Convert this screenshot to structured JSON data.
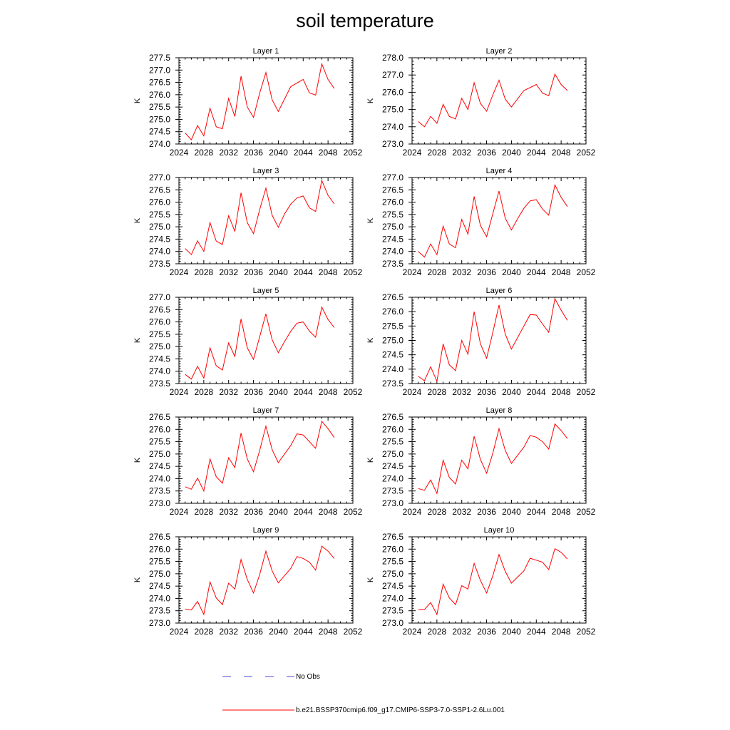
{
  "title": "soil temperature",
  "legend": {
    "entries": [
      {
        "label": "No Obs",
        "color": "#4a4ad0",
        "dash": "dashed"
      },
      {
        "label": "b.e21.BSSP370cmip6.f09_g17.CMIP6-SSP3-7.0-SSP1-2.6Lu.001",
        "color": "#ff0000",
        "dash": "solid"
      }
    ]
  },
  "colors": {
    "series": "#ff0000",
    "obs": "#4a4ad0",
    "axis": "#000000"
  },
  "chart_data": [
    {
      "type": "line",
      "title": "Layer 1",
      "ylabel": "K",
      "xlim": [
        2024,
        2052
      ],
      "ylim": [
        274.0,
        277.5
      ],
      "xticks": [
        "2024",
        "2028",
        "2032",
        "2036",
        "2040",
        "2044",
        "2048",
        "2052"
      ],
      "yticks": [
        "274.0",
        "274.5",
        "275.0",
        "275.5",
        "276.0",
        "276.5",
        "277.0",
        "277.5"
      ],
      "x": [
        2025,
        2026,
        2027,
        2028,
        2029,
        2030,
        2031,
        2032,
        2033,
        2034,
        2035,
        2036,
        2037,
        2038,
        2039,
        2040,
        2042,
        2044,
        2045,
        2046,
        2047,
        2048,
        2049
      ],
      "series": [
        {
          "values": [
            274.45,
            274.17,
            274.75,
            274.33,
            275.45,
            274.7,
            274.62,
            275.85,
            275.12,
            276.75,
            275.5,
            275.08,
            276.07,
            276.9,
            275.8,
            275.32,
            276.33,
            276.62,
            276.08,
            275.98,
            277.25,
            276.62,
            276.25
          ]
        }
      ]
    },
    {
      "type": "line",
      "title": "Layer 2",
      "ylabel": "K",
      "xlim": [
        2024,
        2052
      ],
      "ylim": [
        273.0,
        278.0
      ],
      "xticks": [
        "2024",
        "2028",
        "2032",
        "2036",
        "2040",
        "2044",
        "2048",
        "2052"
      ],
      "yticks": [
        "273.0",
        "274.0",
        "275.0",
        "276.0",
        "277.0",
        "278.0"
      ],
      "x": [
        2025,
        2026,
        2027,
        2028,
        2029,
        2030,
        2031,
        2032,
        2033,
        2034,
        2035,
        2036,
        2037,
        2038,
        2039,
        2040,
        2042,
        2044,
        2045,
        2046,
        2047,
        2048,
        2049
      ],
      "series": [
        {
          "values": [
            274.3,
            274.0,
            274.6,
            274.2,
            275.3,
            274.6,
            274.45,
            275.65,
            275.0,
            276.55,
            275.35,
            274.9,
            275.85,
            276.7,
            275.6,
            275.15,
            276.1,
            276.45,
            275.95,
            275.8,
            277.05,
            276.45,
            276.1
          ]
        }
      ]
    },
    {
      "type": "line",
      "title": "Layer 3",
      "ylabel": "K",
      "xlim": [
        2024,
        2052
      ],
      "ylim": [
        273.5,
        277.0
      ],
      "xticks": [
        "2024",
        "2028",
        "2032",
        "2036",
        "2040",
        "2044",
        "2048",
        "2052"
      ],
      "yticks": [
        "273.5",
        "274.0",
        "274.5",
        "275.0",
        "275.5",
        "276.0",
        "276.5",
        "277.0"
      ],
      "x": [
        2025,
        2026,
        2027,
        2028,
        2029,
        2030,
        2031,
        2032,
        2033,
        2034,
        2035,
        2036,
        2037,
        2038,
        2039,
        2040,
        2041,
        2042,
        2043,
        2044,
        2045,
        2046,
        2047,
        2048,
        2049
      ],
      "series": [
        {
          "values": [
            274.12,
            273.87,
            274.43,
            274.0,
            275.17,
            274.42,
            274.28,
            275.45,
            274.82,
            276.38,
            275.17,
            274.72,
            275.7,
            276.57,
            275.47,
            274.98,
            275.52,
            275.92,
            276.17,
            276.25,
            275.77,
            275.62,
            276.88,
            276.28,
            275.93
          ]
        }
      ]
    },
    {
      "type": "line",
      "title": "Layer 4",
      "ylabel": "K",
      "xlim": [
        2024,
        2052
      ],
      "ylim": [
        273.5,
        277.0
      ],
      "xticks": [
        "2024",
        "2028",
        "2032",
        "2036",
        "2040",
        "2044",
        "2048",
        "2052"
      ],
      "yticks": [
        "273.5",
        "274.0",
        "274.5",
        "275.0",
        "275.5",
        "276.0",
        "276.5",
        "277.0"
      ],
      "x": [
        2025,
        2026,
        2027,
        2028,
        2029,
        2030,
        2031,
        2032,
        2033,
        2034,
        2035,
        2036,
        2037,
        2038,
        2039,
        2040,
        2041,
        2042,
        2043,
        2044,
        2045,
        2046,
        2047,
        2048,
        2049
      ],
      "series": [
        {
          "values": [
            274.0,
            273.77,
            274.3,
            273.87,
            275.03,
            274.3,
            274.15,
            275.3,
            274.7,
            276.23,
            275.05,
            274.6,
            275.53,
            276.45,
            275.35,
            274.87,
            275.33,
            275.75,
            276.05,
            276.1,
            275.72,
            275.47,
            276.7,
            276.2,
            275.82
          ]
        }
      ]
    },
    {
      "type": "line",
      "title": "Layer 5",
      "ylabel": "K",
      "xlim": [
        2024,
        2052
      ],
      "ylim": [
        273.5,
        277.0
      ],
      "xticks": [
        "2024",
        "2028",
        "2032",
        "2036",
        "2040",
        "2044",
        "2048",
        "2052"
      ],
      "yticks": [
        "273.5",
        "274.0",
        "274.5",
        "275.0",
        "275.5",
        "276.0",
        "276.5",
        "277.0"
      ],
      "x": [
        2025,
        2026,
        2027,
        2028,
        2029,
        2030,
        2031,
        2032,
        2033,
        2034,
        2035,
        2036,
        2037,
        2038,
        2039,
        2040,
        2041,
        2042,
        2043,
        2044,
        2045,
        2046,
        2047,
        2048,
        2049
      ],
      "series": [
        {
          "values": [
            273.87,
            273.68,
            274.2,
            273.72,
            274.95,
            274.22,
            274.05,
            275.15,
            274.6,
            276.12,
            274.95,
            274.48,
            275.4,
            276.33,
            275.28,
            274.75,
            275.2,
            275.62,
            275.95,
            276.0,
            275.63,
            275.38,
            276.6,
            276.1,
            275.77
          ]
        }
      ]
    },
    {
      "type": "line",
      "title": "Layer 6",
      "ylabel": "K",
      "xlim": [
        2024,
        2052
      ],
      "ylim": [
        273.5,
        276.5
      ],
      "xticks": [
        "2024",
        "2028",
        "2032",
        "2036",
        "2040",
        "2044",
        "2048",
        "2052"
      ],
      "yticks": [
        "273.5",
        "274.0",
        "274.5",
        "275.0",
        "275.5",
        "276.0",
        "276.5"
      ],
      "x": [
        2025,
        2026,
        2027,
        2028,
        2029,
        2030,
        2031,
        2032,
        2033,
        2034,
        2035,
        2036,
        2037,
        2038,
        2039,
        2040,
        2041,
        2042,
        2043,
        2044,
        2045,
        2046,
        2047,
        2048,
        2049
      ],
      "series": [
        {
          "values": [
            273.75,
            273.6,
            274.08,
            273.58,
            274.88,
            274.15,
            273.95,
            275.0,
            274.52,
            276.0,
            274.88,
            274.38,
            275.28,
            276.23,
            275.22,
            274.7,
            275.1,
            275.5,
            275.9,
            275.88,
            275.57,
            275.28,
            276.45,
            276.05,
            275.7
          ]
        }
      ]
    },
    {
      "type": "line",
      "title": "Layer 7",
      "ylabel": "K",
      "xlim": [
        2024,
        2052
      ],
      "ylim": [
        273.0,
        276.5
      ],
      "xticks": [
        "2024",
        "2028",
        "2032",
        "2036",
        "2040",
        "2044",
        "2048",
        "2052"
      ],
      "yticks": [
        "273.0",
        "273.5",
        "274.0",
        "274.5",
        "275.0",
        "275.5",
        "276.0",
        "276.5"
      ],
      "x": [
        2025,
        2026,
        2027,
        2028,
        2029,
        2030,
        2031,
        2032,
        2033,
        2034,
        2035,
        2036,
        2037,
        2038,
        2039,
        2040,
        2042,
        2043,
        2044,
        2046,
        2047,
        2048,
        2049
      ],
      "series": [
        {
          "values": [
            273.67,
            273.57,
            274.02,
            273.5,
            274.8,
            274.08,
            273.82,
            274.85,
            274.45,
            275.85,
            274.8,
            274.28,
            275.15,
            276.13,
            275.18,
            274.65,
            275.35,
            275.82,
            275.77,
            275.23,
            276.33,
            276.03,
            275.67
          ]
        }
      ]
    },
    {
      "type": "line",
      "title": "Layer 8",
      "ylabel": "K",
      "xlim": [
        2024,
        2052
      ],
      "ylim": [
        273.0,
        276.5
      ],
      "xticks": [
        "2024",
        "2028",
        "2032",
        "2036",
        "2040",
        "2044",
        "2048",
        "2052"
      ],
      "yticks": [
        "273.0",
        "273.5",
        "274.0",
        "274.5",
        "275.0",
        "275.5",
        "276.0",
        "276.5"
      ],
      "x": [
        2025,
        2026,
        2027,
        2028,
        2029,
        2030,
        2031,
        2032,
        2033,
        2034,
        2035,
        2036,
        2037,
        2038,
        2039,
        2040,
        2042,
        2043,
        2044,
        2045,
        2046,
        2047,
        2048,
        2049
      ],
      "series": [
        {
          "values": [
            273.6,
            273.53,
            273.95,
            273.4,
            274.75,
            274.05,
            273.78,
            274.75,
            274.4,
            275.72,
            274.78,
            274.22,
            275.03,
            276.03,
            275.15,
            274.62,
            275.28,
            275.75,
            275.68,
            275.5,
            275.2,
            276.22,
            275.95,
            275.63
          ]
        }
      ]
    },
    {
      "type": "line",
      "title": "Layer 9",
      "ylabel": "K",
      "xlim": [
        2024,
        2052
      ],
      "ylim": [
        273.0,
        276.5
      ],
      "xticks": [
        "2024",
        "2028",
        "2032",
        "2036",
        "2040",
        "2044",
        "2048",
        "2052"
      ],
      "yticks": [
        "273.0",
        "273.5",
        "274.0",
        "274.5",
        "275.0",
        "275.5",
        "276.0",
        "276.5"
      ],
      "x": [
        2025,
        2026,
        2027,
        2028,
        2029,
        2030,
        2031,
        2032,
        2033,
        2034,
        2035,
        2036,
        2037,
        2038,
        2039,
        2040,
        2042,
        2043,
        2044,
        2045,
        2046,
        2047,
        2048,
        2049
      ],
      "series": [
        {
          "values": [
            273.57,
            273.53,
            273.88,
            273.35,
            274.67,
            274.02,
            273.75,
            274.62,
            274.38,
            275.58,
            274.77,
            274.22,
            274.97,
            275.92,
            275.12,
            274.63,
            275.22,
            275.7,
            275.62,
            275.47,
            275.15,
            276.12,
            275.92,
            275.62
          ]
        }
      ]
    },
    {
      "type": "line",
      "title": "Layer 10",
      "ylabel": "K",
      "xlim": [
        2024,
        2052
      ],
      "ylim": [
        273.0,
        276.5
      ],
      "xticks": [
        "2024",
        "2028",
        "2032",
        "2036",
        "2040",
        "2044",
        "2048",
        "2052"
      ],
      "yticks": [
        "273.0",
        "273.5",
        "274.0",
        "274.5",
        "275.0",
        "275.5",
        "276.0",
        "276.5"
      ],
      "x": [
        2025,
        2026,
        2027,
        2028,
        2029,
        2030,
        2031,
        2032,
        2033,
        2034,
        2035,
        2036,
        2037,
        2038,
        2039,
        2040,
        2042,
        2043,
        2044,
        2045,
        2046,
        2047,
        2048,
        2049
      ],
      "series": [
        {
          "values": [
            273.55,
            273.55,
            273.83,
            273.35,
            274.58,
            274.02,
            273.75,
            274.52,
            274.38,
            275.42,
            274.73,
            274.22,
            274.92,
            275.78,
            275.1,
            274.62,
            275.12,
            275.63,
            275.55,
            275.47,
            275.17,
            276.02,
            275.87,
            275.6
          ]
        }
      ]
    }
  ]
}
